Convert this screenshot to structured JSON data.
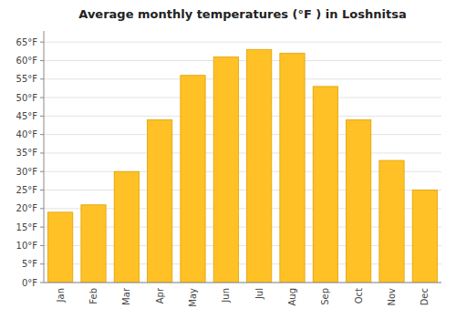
{
  "chart_data": {
    "type": "bar",
    "title": "Average monthly temperatures (°F ) in Loshnitsa",
    "categories": [
      "Jan",
      "Feb",
      "Mar",
      "Apr",
      "May",
      "Jun",
      "Jul",
      "Aug",
      "Sep",
      "Oct",
      "Nov",
      "Dec"
    ],
    "values": [
      19,
      21,
      30,
      44,
      56,
      61,
      63,
      62,
      53,
      44,
      33,
      25
    ],
    "color": "#FFC125",
    "ylim": [
      0,
      68
    ],
    "yticks": [
      {
        "value": 0,
        "label": "0°F"
      },
      {
        "value": 5,
        "label": "5°F"
      },
      {
        "value": 10,
        "label": "10°F"
      },
      {
        "value": 15,
        "label": "15°F"
      },
      {
        "value": 20,
        "label": "20°F"
      },
      {
        "value": 25,
        "label": "25°F"
      },
      {
        "value": 30,
        "label": "30°F"
      },
      {
        "value": 35,
        "label": "35°F"
      },
      {
        "value": 40,
        "label": "40°F"
      },
      {
        "value": 45,
        "label": "45°F"
      },
      {
        "value": 50,
        "label": "50°F"
      },
      {
        "value": 55,
        "label": "55°F"
      },
      {
        "value": 60,
        "label": "60°F"
      },
      {
        "value": 65,
        "label": "65°F"
      }
    ],
    "grid": true
  }
}
